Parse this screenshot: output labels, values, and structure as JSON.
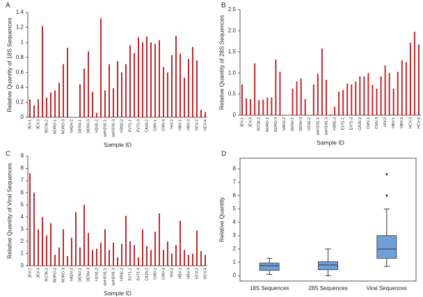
{
  "chart_data": [
    {
      "type": "bar",
      "title": "A",
      "y_label": "Relative Quantity of 18S Sequences",
      "x_label": "Sample ID",
      "color": "#c0282d",
      "categories": [
        "JEV-1",
        null,
        "JEV-3",
        null,
        "ROTA-2",
        null,
        "NORO-1",
        null,
        "NORO-3",
        null,
        "hADV-2",
        null,
        "DENV-1",
        null,
        "DENV-3",
        null,
        "H1N1-2",
        null,
        "swH1N1-1",
        null,
        "swH1N1-3",
        null,
        "H3N2-2",
        null,
        "EV71-1",
        null,
        "EV71-3",
        null,
        "CA16-2",
        null,
        "CMV-1",
        null,
        "CMV-3",
        null,
        "HIV-2",
        null,
        "HBV-1",
        null,
        "HBV-3",
        null,
        "HCV-2",
        null,
        "HCV-4"
      ],
      "values": [
        0.24,
        0.16,
        0.24,
        1.22,
        0.26,
        0.33,
        0.36,
        0.46,
        0.71,
        0.93,
        0,
        0,
        0.44,
        0.65,
        0.88,
        0.34,
        0.06,
        1.32,
        0.36,
        0.71,
        0.39,
        0.75,
        0.6,
        0.71,
        0.96,
        0.86,
        1.07,
        1.0,
        1.08,
        1.0,
        0.98,
        1.03,
        0.67,
        0.6,
        0.83,
        1.09,
        0.85,
        0.53,
        0.78,
        0.94,
        0.76,
        0.1,
        0.07
      ],
      "ylim": [
        0,
        1.4
      ],
      "yticks": [
        0,
        0.2,
        0.4,
        0.6,
        0.8,
        1,
        1.2,
        1.4
      ]
    },
    {
      "type": "bar",
      "title": "B",
      "y_label": "Relative Quantity of 28S Sequences",
      "x_label": "Sample ID",
      "color": "#c0282d",
      "categories": [
        "JEV-1",
        null,
        "JEV-3",
        null,
        "ROTA-2",
        null,
        "NORO-1",
        null,
        "NORO-3",
        null,
        "hADV-2",
        null,
        "DENV-1",
        null,
        "DENV-3",
        null,
        "H1N1-2",
        null,
        "swH1N1-1",
        null,
        "swH1N1-3",
        null,
        "H3N2-2",
        null,
        "EV71-1",
        null,
        "EV71-3",
        null,
        "CA16-2",
        null,
        "CMV-1",
        null,
        "CMV-3",
        null,
        "HIV-2",
        null,
        "HBV-1",
        null,
        "HBV-3",
        null,
        "HCV-2",
        null,
        "HCV-4"
      ],
      "values": [
        0.73,
        0.4,
        0.38,
        1.23,
        0.36,
        0.37,
        0.42,
        0.42,
        1.32,
        1.03,
        0,
        0,
        0.63,
        0.8,
        0.87,
        0.38,
        0,
        0.73,
        0.98,
        1.58,
        0.84,
        0.02,
        0.2,
        0.56,
        0.6,
        0.75,
        0.73,
        0.8,
        0.92,
        0.92,
        1.0,
        0.72,
        0.63,
        0.92,
        1.18,
        1.0,
        0.63,
        1.03,
        1.3,
        1.26,
        1.72,
        1.98,
        1.68
      ],
      "ylim": [
        0,
        2.5
      ],
      "yticks": [
        0,
        0.5,
        {
          "value": 1,
          "label": "1.0"
        },
        1.5,
        {
          "value": 2,
          "label": "2.0"
        },
        2.5
      ]
    },
    {
      "type": "bar",
      "title": "C",
      "y_label": "Relative Quantity of Viral Sequences",
      "x_label": "Sample ID",
      "color": "#c0282d",
      "categories": [
        "JEV-1",
        null,
        "JEV-3",
        null,
        "ROTA-2",
        null,
        "NORO-1",
        null,
        "NORO-3",
        null,
        "hADV-2",
        null,
        "DENV-1",
        null,
        "DENV-3",
        null,
        "H1N1-2",
        null,
        "swH1N1-1",
        null,
        "swH1N1-3",
        null,
        "H3N2-2",
        null,
        "EV71-1",
        null,
        "EV71-3",
        null,
        "CA16-2",
        null,
        "CMV-1",
        null,
        "CMV-3",
        null,
        "HIV-2",
        null,
        "HBV-1",
        null,
        "HBV-3",
        null,
        "HCV-2",
        null,
        "HCV-4"
      ],
      "values": [
        7.6,
        6.0,
        3.0,
        4.0,
        2.5,
        3.5,
        0.9,
        1.5,
        3.0,
        0.8,
        2.3,
        4.4,
        1.5,
        5.0,
        2.7,
        1.3,
        1.4,
        1.9,
        3.0,
        1.3,
        1.9,
        0.7,
        1.8,
        4.1,
        2.0,
        1.7,
        0.7,
        3.0,
        1.6,
        1.3,
        2.8,
        4.3,
        1.3,
        2.0,
        1.0,
        1.7,
        3.7,
        1.3,
        0.9,
        1.0,
        2.9,
        1.2,
        0.9
      ],
      "ylim": [
        0,
        9
      ],
      "yticks": [
        0,
        1,
        2,
        3,
        4,
        5,
        6,
        7,
        8,
        9
      ]
    },
    {
      "type": "box",
      "title": "D",
      "y_label": "Relative Quantity",
      "color": "#6f9fd8",
      "categories": [
        "18S Sequences",
        "28S Sequences",
        "Viral Sequences"
      ],
      "boxes": [
        {
          "min": 0.1,
          "q1": 0.4,
          "median": 0.75,
          "q3": 0.95,
          "max": 1.3,
          "outliers": []
        },
        {
          "min": 0.0,
          "q1": 0.45,
          "median": 0.8,
          "q3": 1.05,
          "max": 2.0,
          "outliers": []
        },
        {
          "min": 0.7,
          "q1": 1.3,
          "median": 2.0,
          "q3": 3.0,
          "max": 5.0,
          "outliers": [
            6.0,
            7.6
          ]
        }
      ],
      "ylim": [
        -0.4,
        8.8
      ],
      "yticks": [
        0,
        1,
        2,
        3,
        4,
        5,
        6,
        7,
        8
      ]
    }
  ]
}
